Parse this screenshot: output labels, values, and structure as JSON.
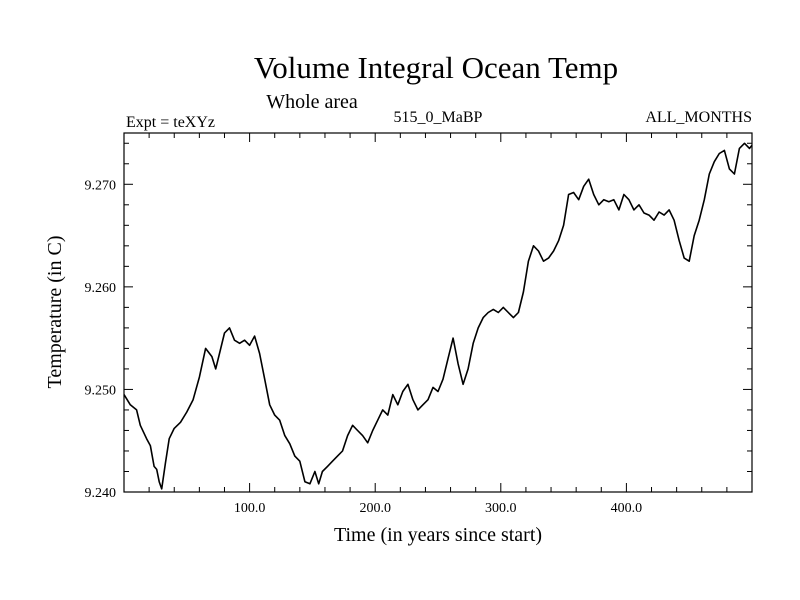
{
  "chart_data": {
    "type": "line",
    "title": "Volume Integral Ocean Temp",
    "subtitle": "Whole area",
    "left_label": "Expt = teXYz",
    "center_label": "515_0_MaBP",
    "right_label": "ALL_MONTHS",
    "xlabel": "Time (in years since start)",
    "ylabel": "Temperature (in C)",
    "xlim": [
      0,
      500
    ],
    "ylim": [
      9.24,
      9.275
    ],
    "xticks": [
      100,
      200,
      300,
      400
    ],
    "xtick_labels": [
      "100.0",
      "200.0",
      "300.0",
      "400.0"
    ],
    "yticks": [
      9.24,
      9.25,
      9.26,
      9.27
    ],
    "ytick_labels": [
      "9.240",
      "9.250",
      "9.260",
      "9.270"
    ],
    "grid": false,
    "line_color": "#000000",
    "series": [
      {
        "points": [
          [
            0,
            9.2495
          ],
          [
            5,
            9.2485
          ],
          [
            10,
            9.248
          ],
          [
            13,
            9.2465
          ],
          [
            18,
            9.2452
          ],
          [
            21,
            9.2445
          ],
          [
            24,
            9.2425
          ],
          [
            26,
            9.2422
          ],
          [
            28,
            9.241
          ],
          [
            30,
            9.2403
          ],
          [
            33,
            9.2428
          ],
          [
            36,
            9.2452
          ],
          [
            40,
            9.2462
          ],
          [
            45,
            9.2468
          ],
          [
            50,
            9.2478
          ],
          [
            55,
            9.249
          ],
          [
            60,
            9.2512
          ],
          [
            65,
            9.254
          ],
          [
            70,
            9.2532
          ],
          [
            73,
            9.252
          ],
          [
            76,
            9.2535
          ],
          [
            80,
            9.2555
          ],
          [
            84,
            9.256
          ],
          [
            88,
            9.2548
          ],
          [
            92,
            9.2545
          ],
          [
            96,
            9.2548
          ],
          [
            100,
            9.2543
          ],
          [
            104,
            9.2552
          ],
          [
            108,
            9.2535
          ],
          [
            112,
            9.251
          ],
          [
            116,
            9.2485
          ],
          [
            120,
            9.2475
          ],
          [
            124,
            9.247
          ],
          [
            128,
            9.2455
          ],
          [
            132,
            9.2447
          ],
          [
            136,
            9.2435
          ],
          [
            140,
            9.243
          ],
          [
            144,
            9.241
          ],
          [
            148,
            9.2408
          ],
          [
            152,
            9.242
          ],
          [
            155,
            9.2408
          ],
          [
            158,
            9.242
          ],
          [
            162,
            9.2425
          ],
          [
            166,
            9.243
          ],
          [
            170,
            9.2435
          ],
          [
            174,
            9.244
          ],
          [
            178,
            9.2455
          ],
          [
            182,
            9.2465
          ],
          [
            186,
            9.246
          ],
          [
            190,
            9.2455
          ],
          [
            194,
            9.2448
          ],
          [
            198,
            9.246
          ],
          [
            202,
            9.247
          ],
          [
            206,
            9.248
          ],
          [
            210,
            9.2475
          ],
          [
            214,
            9.2495
          ],
          [
            218,
            9.2485
          ],
          [
            222,
            9.2498
          ],
          [
            226,
            9.2505
          ],
          [
            230,
            9.249
          ],
          [
            234,
            9.248
          ],
          [
            238,
            9.2485
          ],
          [
            242,
            9.249
          ],
          [
            246,
            9.2502
          ],
          [
            250,
            9.2498
          ],
          [
            254,
            9.251
          ],
          [
            258,
            9.253
          ],
          [
            262,
            9.255
          ],
          [
            266,
            9.2525
          ],
          [
            270,
            9.2505
          ],
          [
            274,
            9.252
          ],
          [
            278,
            9.2545
          ],
          [
            282,
            9.256
          ],
          [
            286,
            9.257
          ],
          [
            290,
            9.2575
          ],
          [
            294,
            9.2578
          ],
          [
            298,
            9.2575
          ],
          [
            302,
            9.258
          ],
          [
            306,
            9.2575
          ],
          [
            310,
            9.257
          ],
          [
            314,
            9.2575
          ],
          [
            318,
            9.2595
          ],
          [
            322,
            9.2625
          ],
          [
            326,
            9.264
          ],
          [
            330,
            9.2635
          ],
          [
            334,
            9.2625
          ],
          [
            338,
            9.2628
          ],
          [
            342,
            9.2635
          ],
          [
            346,
            9.2645
          ],
          [
            350,
            9.266
          ],
          [
            354,
            9.269
          ],
          [
            358,
            9.2692
          ],
          [
            362,
            9.2685
          ],
          [
            366,
            9.2698
          ],
          [
            370,
            9.2705
          ],
          [
            374,
            9.269
          ],
          [
            378,
            9.268
          ],
          [
            382,
            9.2685
          ],
          [
            386,
            9.2683
          ],
          [
            390,
            9.2685
          ],
          [
            394,
            9.2675
          ],
          [
            398,
            9.269
          ],
          [
            402,
            9.2685
          ],
          [
            406,
            9.2675
          ],
          [
            410,
            9.268
          ],
          [
            414,
            9.2672
          ],
          [
            418,
            9.267
          ],
          [
            422,
            9.2665
          ],
          [
            426,
            9.2673
          ],
          [
            430,
            9.267
          ],
          [
            434,
            9.2675
          ],
          [
            438,
            9.2665
          ],
          [
            442,
            9.2645
          ],
          [
            446,
            9.2628
          ],
          [
            450,
            9.2625
          ],
          [
            454,
            9.265
          ],
          [
            458,
            9.2665
          ],
          [
            462,
            9.2685
          ],
          [
            466,
            9.271
          ],
          [
            470,
            9.2722
          ],
          [
            474,
            9.273
          ],
          [
            478,
            9.2733
          ],
          [
            482,
            9.2715
          ],
          [
            486,
            9.271
          ],
          [
            490,
            9.2735
          ],
          [
            494,
            9.274
          ],
          [
            498,
            9.2735
          ],
          [
            500,
            9.2738
          ]
        ]
      }
    ]
  }
}
